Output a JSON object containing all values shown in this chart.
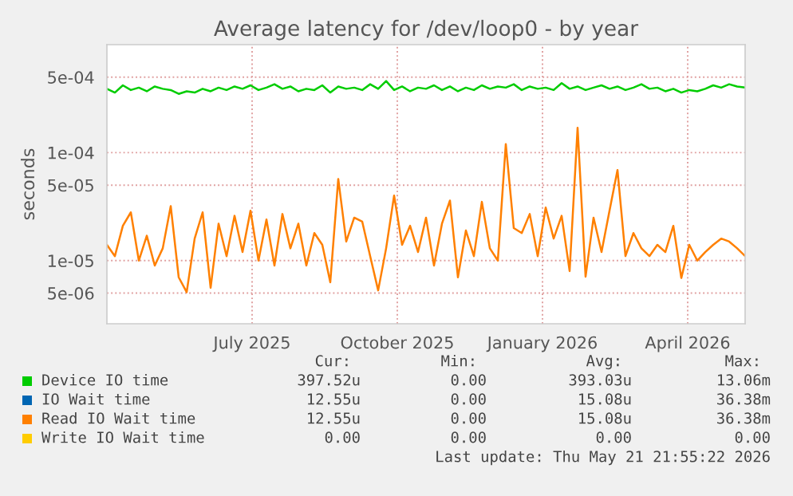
{
  "chart_data": {
    "type": "line",
    "title": "Average latency for /dev/loop0 - by year",
    "ylabel": "seconds",
    "log": "y",
    "grid": true,
    "legend": "bottom",
    "marker": "none",
    "line_style": "solid",
    "xlim": [
      "2025-04-16",
      "2026-05-21"
    ],
    "xticks": [
      {
        "value": "2025-07-16",
        "label": "July 2025"
      },
      {
        "value": "2025-10-15",
        "label": "October 2025"
      },
      {
        "value": "2026-01-14",
        "label": "January 2026"
      },
      {
        "value": "2026-04-15",
        "label": "April 2026"
      }
    ],
    "ylim": [
      2.6e-06,
      0.001
    ],
    "yticks": [
      {
        "value": 5e-06,
        "label": "5e-06"
      },
      {
        "value": 1e-05,
        "label": "1e-05"
      },
      {
        "value": 5e-05,
        "label": "5e-05"
      },
      {
        "value": 0.0001,
        "label": "1e-04"
      },
      {
        "value": 0.0005,
        "label": "5e-04"
      }
    ],
    "x": [
      "2025-04-16",
      "2025-04-21",
      "2025-04-26",
      "2025-05-01",
      "2025-05-06",
      "2025-05-11",
      "2025-05-16",
      "2025-05-21",
      "2025-05-26",
      "2025-05-31",
      "2025-06-05",
      "2025-06-10",
      "2025-06-15",
      "2025-06-20",
      "2025-06-25",
      "2025-06-30",
      "2025-07-05",
      "2025-07-10",
      "2025-07-15",
      "2025-07-20",
      "2025-07-25",
      "2025-07-30",
      "2025-08-04",
      "2025-08-09",
      "2025-08-14",
      "2025-08-19",
      "2025-08-24",
      "2025-08-29",
      "2025-09-03",
      "2025-09-08",
      "2025-09-13",
      "2025-09-18",
      "2025-09-23",
      "2025-09-28",
      "2025-10-03",
      "2025-10-08",
      "2025-10-13",
      "2025-10-18",
      "2025-10-23",
      "2025-10-28",
      "2025-11-02",
      "2025-11-07",
      "2025-11-12",
      "2025-11-17",
      "2025-11-22",
      "2025-11-27",
      "2025-12-02",
      "2025-12-07",
      "2025-12-12",
      "2025-12-17",
      "2025-12-22",
      "2025-12-27",
      "2026-01-01",
      "2026-01-06",
      "2026-01-11",
      "2026-01-16",
      "2026-01-21",
      "2026-01-26",
      "2026-01-31",
      "2026-02-05",
      "2026-02-10",
      "2026-02-15",
      "2026-02-20",
      "2026-02-25",
      "2026-03-02",
      "2026-03-07",
      "2026-03-12",
      "2026-03-17",
      "2026-03-22",
      "2026-03-27",
      "2026-04-01",
      "2026-04-06",
      "2026-04-11",
      "2026-04-16",
      "2026-04-21",
      "2026-04-26",
      "2026-05-01",
      "2026-05-06",
      "2026-05-11",
      "2026-05-16",
      "2026-05-21"
    ],
    "series": [
      {
        "name": "Device IO time",
        "color": "#00cc00",
        "values": [
          0.00039,
          0.00036,
          0.00042,
          0.00038,
          0.0004,
          0.00037,
          0.00041,
          0.00039,
          0.00038,
          0.00035,
          0.00037,
          0.00036,
          0.00039,
          0.00037,
          0.0004,
          0.00038,
          0.00041,
          0.00039,
          0.00042,
          0.00038,
          0.0004,
          0.00043,
          0.00039,
          0.00041,
          0.00037,
          0.00039,
          0.00038,
          0.00042,
          0.00036,
          0.00041,
          0.00039,
          0.0004,
          0.00038,
          0.00043,
          0.00039,
          0.00046,
          0.00038,
          0.00041,
          0.00037,
          0.0004,
          0.00039,
          0.00042,
          0.00038,
          0.00041,
          0.00037,
          0.0004,
          0.00038,
          0.00042,
          0.00039,
          0.00041,
          0.0004,
          0.00043,
          0.00038,
          0.00041,
          0.00039,
          0.0004,
          0.00038,
          0.00044,
          0.00039,
          0.00041,
          0.00038,
          0.0004,
          0.00042,
          0.00039,
          0.00041,
          0.00038,
          0.0004,
          0.00043,
          0.00039,
          0.0004,
          0.00037,
          0.00039,
          0.00036,
          0.00038,
          0.00037,
          0.00039,
          0.00042,
          0.0004,
          0.00043,
          0.00041,
          0.0004
        ]
      },
      {
        "name": "IO Wait time",
        "color": "#0066b3",
        "values": [
          null,
          null,
          null,
          null,
          null,
          null,
          null,
          null,
          null,
          null,
          null,
          null,
          null,
          null,
          null,
          null,
          null,
          null,
          null,
          null,
          null,
          null,
          null,
          null,
          null,
          null,
          null,
          null,
          null,
          null,
          null,
          null,
          null,
          null,
          null,
          null,
          null,
          null,
          null,
          null,
          null,
          null,
          null,
          null,
          null,
          null,
          null,
          null,
          null,
          null,
          null,
          null,
          null,
          null,
          null,
          null,
          null,
          null,
          null,
          null,
          null,
          null,
          null,
          null,
          null,
          null,
          null,
          null,
          null,
          null,
          null,
          null,
          null,
          null,
          null,
          null,
          null,
          null,
          null,
          null,
          null
        ]
      },
      {
        "name": "Read IO Wait time",
        "color": "#ff8000",
        "values": [
          1.4e-05,
          1.1e-05,
          2.1e-05,
          2.8e-05,
          1e-05,
          1.7e-05,
          9e-06,
          1.3e-05,
          3.2e-05,
          7e-06,
          5.1e-06,
          1.6e-05,
          2.8e-05,
          5.6e-06,
          2.2e-05,
          1.1e-05,
          2.6e-05,
          1.2e-05,
          2.9e-05,
          1e-05,
          2.4e-05,
          9e-06,
          2.7e-05,
          1.3e-05,
          2.2e-05,
          9e-06,
          1.8e-05,
          1.4e-05,
          6.3e-06,
          5.7e-05,
          1.5e-05,
          2.5e-05,
          2.3e-05,
          1.1e-05,
          5.3e-06,
          1.3e-05,
          4e-05,
          1.4e-05,
          2.1e-05,
          1.2e-05,
          2.5e-05,
          9e-06,
          2.2e-05,
          3.6e-05,
          7e-06,
          1.9e-05,
          1.1e-05,
          3.5e-05,
          1.3e-05,
          1e-05,
          0.00012,
          2e-05,
          1.8e-05,
          2.7e-05,
          1.1e-05,
          3.1e-05,
          1.6e-05,
          2.6e-05,
          8e-06,
          0.00017,
          7.1e-06,
          2.5e-05,
          1.2e-05,
          2.9e-05,
          6.9e-05,
          1.1e-05,
          1.8e-05,
          1.3e-05,
          1.1e-05,
          1.4e-05,
          1.2e-05,
          2.1e-05,
          6.9e-06,
          1.4e-05,
          1e-05,
          1.2e-05,
          1.4e-05,
          1.6e-05,
          1.5e-05,
          1.3e-05,
          1.1e-05
        ]
      },
      {
        "name": "Write IO Wait time",
        "color": "#ffcc00",
        "values": [
          null,
          null,
          null,
          null,
          null,
          null,
          null,
          null,
          null,
          null,
          null,
          null,
          null,
          null,
          null,
          null,
          null,
          null,
          null,
          null,
          null,
          null,
          null,
          null,
          null,
          null,
          null,
          null,
          null,
          null,
          null,
          null,
          null,
          null,
          null,
          null,
          null,
          null,
          null,
          null,
          null,
          null,
          null,
          null,
          null,
          null,
          null,
          null,
          null,
          null,
          null,
          null,
          null,
          null,
          null,
          null,
          null,
          null,
          null,
          null,
          null,
          null,
          null,
          null,
          null,
          null,
          null,
          null,
          null,
          null,
          null,
          null,
          null,
          null,
          null,
          null,
          null,
          null,
          null,
          null,
          null
        ]
      }
    ],
    "annotations": [
      "Cur:",
      "Min:",
      "Avg:",
      "Max:",
      "397.52u",
      "0.00",
      "393.03u",
      "13.06m",
      "12.55u",
      "0.00",
      "15.08u",
      "36.38m",
      "12.55u",
      "0.00",
      "15.08u",
      "36.38m",
      "0.00",
      "0.00",
      "0.00",
      "0.00",
      "Last update: Thu May 21 21:55:22 2026"
    ]
  }
}
